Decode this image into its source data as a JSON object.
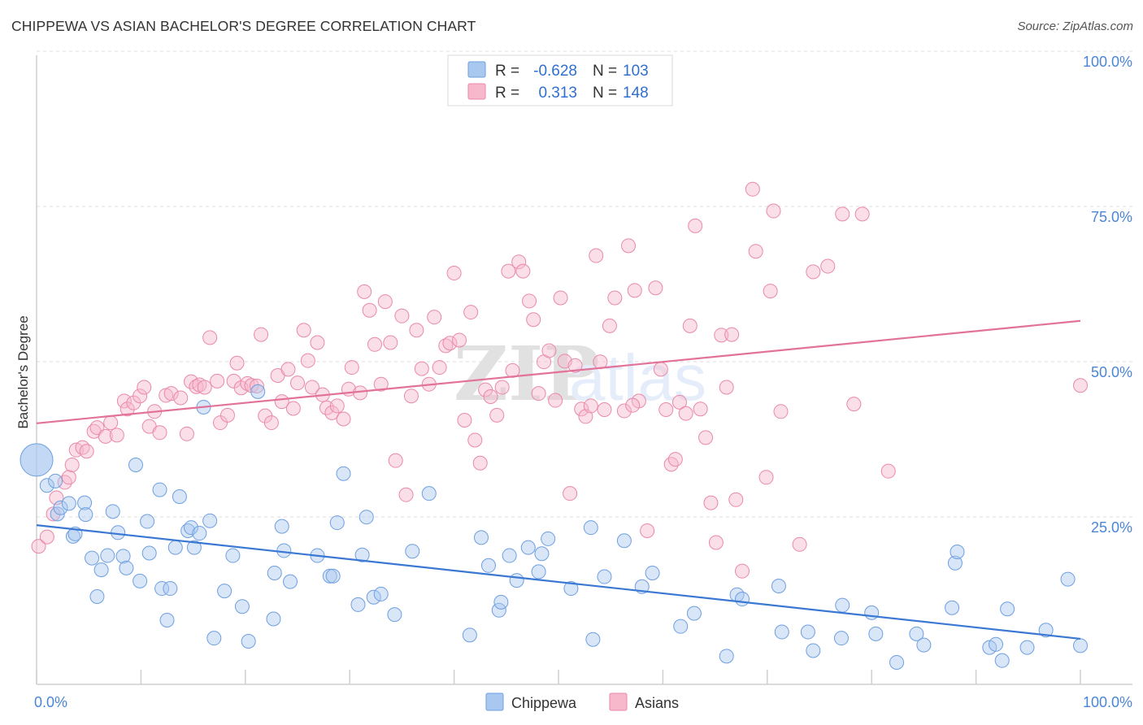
{
  "title": "CHIPPEWA VS ASIAN BACHELOR'S DEGREE CORRELATION CHART",
  "source": "Source: ZipAtlas.com",
  "watermark": {
    "zip": "ZIP",
    "atlas": "atlas"
  },
  "legend": {
    "rows": [
      {
        "series": "Chippewa",
        "r_label": "R =",
        "r_value": "-0.628",
        "n_label": "N =",
        "n_value": "103",
        "color": "#a9c8f0",
        "stroke": "#6e9fe0"
      },
      {
        "series": "Asians",
        "r_label": "R =",
        "r_value": "0.313",
        "n_label": "N =",
        "n_value": "148",
        "color": "#f7b8cb",
        "stroke": "#e989a8"
      }
    ]
  },
  "bottom_legend": [
    {
      "label": "Chippewa",
      "color": "#a9c8f0",
      "stroke": "#6e9fe0"
    },
    {
      "label": "Asians",
      "color": "#f7b8cb",
      "stroke": "#e989a8"
    }
  ],
  "chart_data": {
    "type": "scatter",
    "title": "CHIPPEWA VS ASIAN BACHELOR'S DEGREE CORRELATION CHART",
    "xlabel": "",
    "ylabel": "Bachelor's Degree",
    "xlim": [
      0,
      100
    ],
    "ylim": [
      0,
      100
    ],
    "x_tick_labels": [
      {
        "value": 0,
        "label": "0.0%"
      },
      {
        "value": 100,
        "label": "100.0%"
      }
    ],
    "y_tick_labels": [
      {
        "value": 25,
        "label": "25.0%"
      },
      {
        "value": 50,
        "label": "50.0%"
      },
      {
        "value": 75,
        "label": "75.0%"
      },
      {
        "value": 100,
        "label": "100.0%"
      }
    ],
    "grid": true,
    "legend_position": "top-center",
    "series": [
      {
        "name": "Chippewa",
        "color": "#a9c8f0",
        "stroke": "#6e9fe0",
        "trend_color": "#3a78d4",
        "trend": {
          "x": [
            0,
            100
          ],
          "y": [
            25.9,
            7.6
          ]
        },
        "points": [
          [
            0,
            36.4,
            "big"
          ],
          [
            1,
            32.3
          ],
          [
            1.8,
            33.0
          ],
          [
            2,
            27.7
          ],
          [
            2.3,
            28.7
          ],
          [
            3.1,
            29.4
          ],
          [
            3.5,
            24.1
          ],
          [
            3.7,
            24.5
          ],
          [
            4.6,
            29.5
          ],
          [
            4.7,
            27.6
          ],
          [
            5.3,
            20.6
          ],
          [
            5.8,
            14.4
          ],
          [
            6.2,
            18.7
          ],
          [
            6.8,
            21.0
          ],
          [
            7.3,
            28.1
          ],
          [
            7.8,
            24.7
          ],
          [
            8.3,
            20.9
          ],
          [
            8.6,
            19.0
          ],
          [
            9.5,
            35.6
          ],
          [
            9.9,
            16.9
          ],
          [
            10.6,
            26.5
          ],
          [
            10.8,
            21.4
          ],
          [
            11.8,
            31.6
          ],
          [
            12.0,
            15.7
          ],
          [
            12.5,
            10.6
          ],
          [
            12.8,
            15.7
          ],
          [
            13.3,
            22.3
          ],
          [
            13.7,
            30.5
          ],
          [
            14.5,
            25.0
          ],
          [
            14.8,
            25.5
          ],
          [
            15.1,
            22.3
          ],
          [
            15.6,
            24.6
          ],
          [
            16.0,
            44.9
          ],
          [
            16.6,
            26.6
          ],
          [
            17.0,
            7.7
          ],
          [
            18.0,
            15.3
          ],
          [
            18.8,
            21.0
          ],
          [
            19.7,
            12.8
          ],
          [
            20.3,
            7.2
          ],
          [
            21.2,
            47.4
          ],
          [
            22.7,
            10.8
          ],
          [
            22.8,
            18.2
          ],
          [
            23.5,
            25.7
          ],
          [
            23.7,
            21.8
          ],
          [
            24.3,
            16.8
          ],
          [
            26.9,
            21.0
          ],
          [
            28.1,
            17.7
          ],
          [
            28.4,
            17.7
          ],
          [
            28.8,
            26.3
          ],
          [
            29.4,
            34.2
          ],
          [
            30.8,
            13.1
          ],
          [
            31.2,
            21.1
          ],
          [
            31.6,
            27.2
          ],
          [
            32.3,
            14.3
          ],
          [
            33.0,
            14.8
          ],
          [
            34.3,
            11.5
          ],
          [
            36.0,
            21.7
          ],
          [
            37.6,
            31.0
          ],
          [
            41.5,
            8.2
          ],
          [
            42.6,
            23.9
          ],
          [
            43.3,
            19.4
          ],
          [
            44.3,
            12.2
          ],
          [
            44.5,
            13.5
          ],
          [
            45.3,
            21.0
          ],
          [
            46.0,
            17.0
          ],
          [
            47.1,
            22.3
          ],
          [
            48.1,
            18.4
          ],
          [
            48.4,
            21.3
          ],
          [
            49.0,
            23.7
          ],
          [
            51.2,
            15.7
          ],
          [
            53.1,
            25.5
          ],
          [
            53.3,
            7.5
          ],
          [
            54.4,
            17.6
          ],
          [
            56.3,
            23.4
          ],
          [
            58.0,
            16.0
          ],
          [
            59.0,
            18.2
          ],
          [
            61.7,
            9.6
          ],
          [
            63.0,
            11.7
          ],
          [
            66.1,
            4.8
          ],
          [
            67.1,
            14.7
          ],
          [
            67.6,
            14.0
          ],
          [
            71.1,
            16.1
          ],
          [
            71.4,
            8.7
          ],
          [
            73.9,
            8.7
          ],
          [
            74.4,
            5.7
          ],
          [
            77.1,
            7.7
          ],
          [
            77.2,
            13.0
          ],
          [
            80.0,
            11.8
          ],
          [
            80.4,
            8.4
          ],
          [
            82.4,
            3.8
          ],
          [
            84.3,
            8.4
          ],
          [
            85.0,
            6.6
          ],
          [
            87.7,
            12.6
          ],
          [
            88.0,
            19.8
          ],
          [
            88.2,
            21.6
          ],
          [
            91.3,
            6.2
          ],
          [
            91.9,
            6.7
          ],
          [
            92.5,
            4.1
          ],
          [
            93.0,
            12.4
          ],
          [
            94.9,
            6.2
          ],
          [
            96.7,
            9.0
          ],
          [
            98.8,
            17.2
          ],
          [
            100.0,
            6.5
          ]
        ]
      },
      {
        "name": "Asians",
        "color": "#f7b8cb",
        "stroke": "#e989a8",
        "trend_color": "#e2729a",
        "trend": {
          "x": [
            0,
            100
          ],
          "y": [
            42.3,
            58.8
          ]
        },
        "points": [
          [
            0.2,
            22.5
          ],
          [
            1.0,
            24.0
          ],
          [
            1.6,
            27.7
          ],
          [
            1.9,
            30.3
          ],
          [
            2.7,
            32.8
          ],
          [
            3.1,
            33.6
          ],
          [
            3.4,
            35.6
          ],
          [
            3.8,
            38.0
          ],
          [
            4.4,
            38.4
          ],
          [
            4.8,
            37.8
          ],
          [
            5.5,
            41.0
          ],
          [
            5.8,
            41.6
          ],
          [
            6.6,
            40.2
          ],
          [
            7.1,
            42.4
          ],
          [
            7.7,
            40.4
          ],
          [
            8.4,
            45.9
          ],
          [
            8.7,
            44.6
          ],
          [
            9.3,
            45.6
          ],
          [
            9.9,
            46.7
          ],
          [
            10.3,
            48.1
          ],
          [
            10.8,
            41.8
          ],
          [
            11.3,
            44.2
          ],
          [
            11.8,
            40.8
          ],
          [
            12.4,
            46.8
          ],
          [
            12.9,
            47.1
          ],
          [
            13.8,
            46.4
          ],
          [
            14.4,
            40.6
          ],
          [
            14.8,
            49.0
          ],
          [
            15.3,
            48.2
          ],
          [
            15.6,
            48.5
          ],
          [
            16.1,
            48.1
          ],
          [
            16.6,
            56.1
          ],
          [
            17.3,
            49.1
          ],
          [
            17.6,
            42.4
          ],
          [
            18.3,
            43.6
          ],
          [
            18.9,
            49.1
          ],
          [
            19.2,
            52.0
          ],
          [
            19.6,
            48.0
          ],
          [
            20.2,
            48.7
          ],
          [
            20.6,
            48.4
          ],
          [
            21.1,
            48.3
          ],
          [
            21.5,
            56.6
          ],
          [
            21.9,
            43.5
          ],
          [
            22.5,
            42.4
          ],
          [
            23.1,
            50.0
          ],
          [
            23.5,
            45.8
          ],
          [
            24.1,
            51.0
          ],
          [
            24.6,
            44.7
          ],
          [
            25.0,
            48.8
          ],
          [
            25.6,
            57.3
          ],
          [
            26.0,
            52.4
          ],
          [
            26.4,
            48.1
          ],
          [
            26.9,
            55.3
          ],
          [
            27.4,
            46.9
          ],
          [
            27.8,
            44.8
          ],
          [
            28.3,
            44.0
          ],
          [
            28.8,
            45.1
          ],
          [
            29.4,
            43.0
          ],
          [
            29.9,
            47.8
          ],
          [
            30.2,
            51.3
          ],
          [
            31.0,
            47.2
          ],
          [
            31.4,
            63.5
          ],
          [
            31.9,
            60.5
          ],
          [
            32.4,
            55.0
          ],
          [
            33.0,
            48.6
          ],
          [
            33.4,
            61.9
          ],
          [
            33.9,
            55.3
          ],
          [
            34.4,
            36.3
          ],
          [
            35.0,
            59.6
          ],
          [
            35.4,
            30.8
          ],
          [
            35.9,
            46.7
          ],
          [
            36.4,
            57.3
          ],
          [
            36.9,
            51.1
          ],
          [
            37.6,
            48.6
          ],
          [
            38.1,
            59.4
          ],
          [
            38.6,
            51.3
          ],
          [
            39.2,
            54.8
          ],
          [
            39.6,
            55.2
          ],
          [
            40.0,
            66.5
          ],
          [
            40.5,
            55.7
          ],
          [
            41.0,
            42.8
          ],
          [
            41.6,
            60.2
          ],
          [
            42.0,
            39.6
          ],
          [
            42.5,
            35.9
          ],
          [
            43.0,
            47.7
          ],
          [
            43.5,
            46.6
          ],
          [
            44.1,
            43.6
          ],
          [
            44.6,
            48.1
          ],
          [
            45.2,
            66.8
          ],
          [
            45.6,
            50.8
          ],
          [
            46.2,
            68.3
          ],
          [
            46.6,
            66.8
          ],
          [
            47.2,
            62.0
          ],
          [
            47.6,
            59.0
          ],
          [
            48.1,
            47.1
          ],
          [
            48.6,
            52.2
          ],
          [
            49.1,
            54.0
          ],
          [
            49.7,
            46.0
          ],
          [
            50.2,
            62.5
          ],
          [
            50.6,
            52.3
          ],
          [
            51.1,
            31.0
          ],
          [
            51.6,
            51.6
          ],
          [
            52.2,
            44.6
          ],
          [
            52.6,
            43.4
          ],
          [
            53.1,
            45.1
          ],
          [
            53.6,
            69.3
          ],
          [
            54.0,
            52.2
          ],
          [
            54.4,
            44.5
          ],
          [
            54.9,
            58.0
          ],
          [
            55.4,
            62.5
          ],
          [
            56.3,
            44.3
          ],
          [
            56.7,
            70.9
          ],
          [
            57.3,
            63.7
          ],
          [
            57.7,
            45.9
          ],
          [
            58.5,
            25.0
          ],
          [
            59.3,
            64.1
          ],
          [
            59.8,
            51.0
          ],
          [
            60.3,
            44.5
          ],
          [
            60.8,
            35.7
          ],
          [
            61.2,
            36.5
          ],
          [
            61.6,
            45.7
          ],
          [
            62.2,
            43.9
          ],
          [
            62.6,
            58.0
          ],
          [
            63.1,
            74.1
          ],
          [
            63.6,
            44.6
          ],
          [
            64.1,
            40.0
          ],
          [
            64.6,
            29.5
          ],
          [
            65.1,
            23.1
          ],
          [
            65.6,
            56.5
          ],
          [
            66.1,
            48.1
          ],
          [
            66.6,
            56.6
          ],
          [
            67.0,
            30.0
          ],
          [
            67.6,
            18.5
          ],
          [
            68.6,
            80.0
          ],
          [
            68.9,
            70.0
          ],
          [
            69.9,
            33.6
          ],
          [
            70.3,
            63.6
          ],
          [
            70.6,
            76.5
          ],
          [
            71.3,
            44.2
          ],
          [
            73.1,
            22.8
          ],
          [
            74.4,
            66.7
          ],
          [
            75.8,
            67.6
          ],
          [
            77.2,
            76.0
          ],
          [
            78.3,
            45.4
          ],
          [
            79.1,
            76.0
          ],
          [
            81.6,
            34.6
          ],
          [
            100.0,
            48.4
          ],
          [
            57.1,
            45.2
          ]
        ]
      }
    ]
  }
}
